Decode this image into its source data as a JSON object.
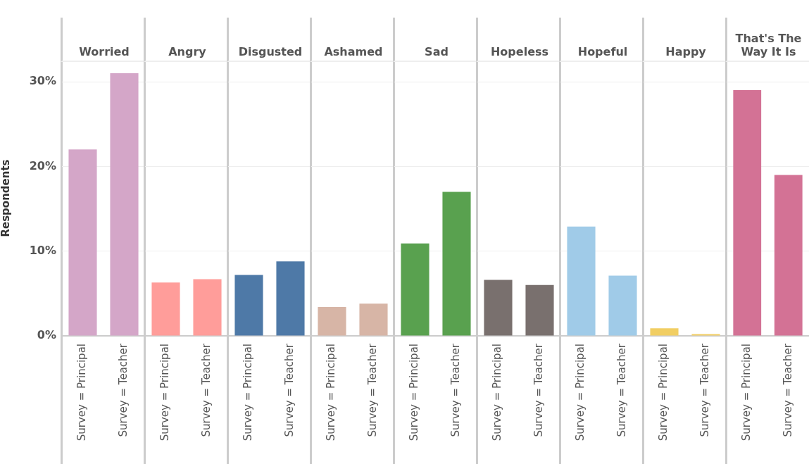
{
  "chart_data": [
    {
      "type": "bar",
      "title": "Worried",
      "ylabel": "Respondents",
      "categories": [
        "Survey = Principal",
        "Survey = Teacher"
      ],
      "values": [
        22.0,
        31.0
      ],
      "color": "#d4a6c8",
      "ylim": [
        0,
        32.5
      ],
      "yticks": [
        {
          "value": 0,
          "label": "0%"
        },
        {
          "value": 10,
          "label": "10%"
        },
        {
          "value": 20,
          "label": "20%"
        },
        {
          "value": 30,
          "label": "30%"
        }
      ],
      "grid": "y"
    },
    {
      "type": "bar",
      "title": "Angry",
      "categories": [
        "Survey = Principal",
        "Survey = Teacher"
      ],
      "values": [
        6.3,
        6.7
      ],
      "color": "#ff9d9a",
      "ylim": [
        0,
        32.5
      ],
      "yticks": [
        {
          "value": 0,
          "label": null
        },
        {
          "value": 10,
          "label": null
        },
        {
          "value": 20,
          "label": null
        },
        {
          "value": 30,
          "label": null
        }
      ],
      "grid": "y",
      "tick_labels": "x"
    },
    {
      "type": "bar",
      "title": "Disgusted",
      "categories": [
        "Survey = Principal",
        "Survey = Teacher"
      ],
      "values": [
        7.2,
        8.8
      ],
      "color": "#4e79a7",
      "ylim": [
        0,
        32.5
      ],
      "yticks": [
        {
          "value": 0,
          "label": null
        },
        {
          "value": 10,
          "label": null
        },
        {
          "value": 20,
          "label": null
        },
        {
          "value": 30,
          "label": null
        }
      ],
      "grid": "y",
      "tick_labels": "x"
    },
    {
      "type": "bar",
      "title": "Ashamed",
      "categories": [
        "Survey = Principal",
        "Survey = Teacher"
      ],
      "values": [
        3.4,
        3.8
      ],
      "color": "#d7b5a6",
      "ylim": [
        0,
        32.5
      ],
      "yticks": [
        {
          "value": 0,
          "label": null
        },
        {
          "value": 10,
          "label": null
        },
        {
          "value": 20,
          "label": null
        },
        {
          "value": 30,
          "label": null
        }
      ],
      "grid": "y",
      "tick_labels": "x"
    },
    {
      "type": "bar",
      "title": "Sad",
      "categories": [
        "Survey = Principal",
        "Survey = Teacher"
      ],
      "values": [
        10.9,
        17.0
      ],
      "color": "#59a14f",
      "ylim": [
        0,
        32.5
      ],
      "yticks": [
        {
          "value": 0,
          "label": null
        },
        {
          "value": 10,
          "label": null
        },
        {
          "value": 20,
          "label": null
        },
        {
          "value": 30,
          "label": null
        }
      ],
      "grid": "y",
      "tick_labels": "x"
    },
    {
      "type": "bar",
      "title": "Hopeless",
      "categories": [
        "Survey = Principal",
        "Survey = Teacher"
      ],
      "values": [
        6.6,
        6.0
      ],
      "color": "#79706e",
      "ylim": [
        0,
        32.5
      ],
      "yticks": [
        {
          "value": 0,
          "label": null
        },
        {
          "value": 10,
          "label": null
        },
        {
          "value": 20,
          "label": null
        },
        {
          "value": 30,
          "label": null
        }
      ],
      "grid": "y",
      "tick_labels": "x"
    },
    {
      "type": "bar",
      "title": "Hopeful",
      "categories": [
        "Survey = Principal",
        "Survey = Teacher"
      ],
      "values": [
        12.9,
        7.1
      ],
      "color": "#a0cbe8",
      "ylim": [
        0,
        32.5
      ],
      "yticks": [
        {
          "value": 0,
          "label": null
        },
        {
          "value": 10,
          "label": null
        },
        {
          "value": 20,
          "label": null
        },
        {
          "value": 30,
          "label": null
        }
      ],
      "grid": "y",
      "tick_labels": "x"
    },
    {
      "type": "bar",
      "title": "Happy",
      "categories": [
        "Survey = Principal",
        "Survey = Teacher"
      ],
      "values": [
        0.9,
        0.2
      ],
      "color": "#f1ce63",
      "ylim": [
        0,
        32.5
      ],
      "yticks": [
        {
          "value": 0,
          "label": null
        },
        {
          "value": 10,
          "label": null
        },
        {
          "value": 20,
          "label": null
        },
        {
          "value": 30,
          "label": null
        }
      ],
      "grid": "y",
      "tick_labels": "x"
    },
    {
      "type": "bar",
      "title": "That's The Way It Is",
      "categories": [
        "Survey = Principal",
        "Survey = Teacher"
      ],
      "values": [
        29.0,
        19.0
      ],
      "color": "#d37295",
      "ylim": [
        0,
        32.5
      ],
      "yticks": [
        {
          "value": 0,
          "label": null
        },
        {
          "value": 10,
          "label": null
        },
        {
          "value": 20,
          "label": null
        },
        {
          "value": 30,
          "label": null
        }
      ],
      "grid": "y",
      "tick_labels": "x"
    }
  ]
}
